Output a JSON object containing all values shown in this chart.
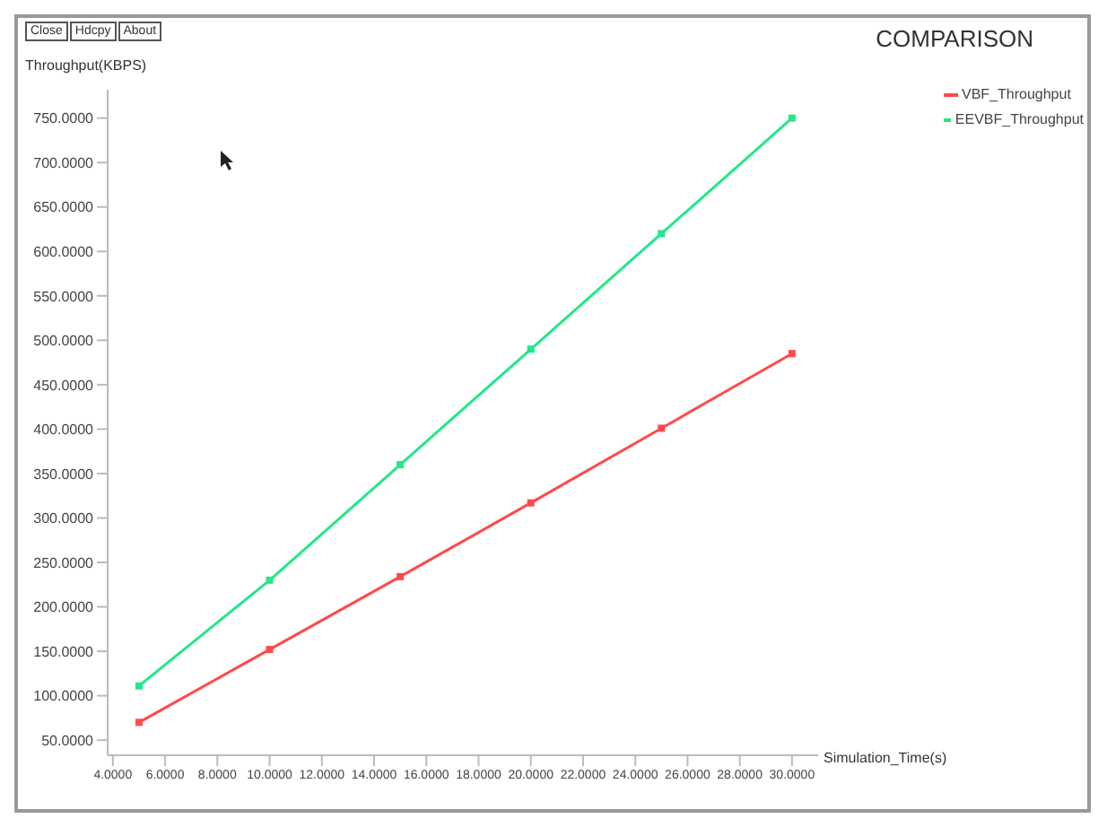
{
  "chart_data": {
    "type": "line",
    "title": "COMPARISON",
    "xlabel": "Simulation_Time(s)",
    "ylabel": "Throughput(KBPS)",
    "annotations": [
      "Close",
      "Hdcpy",
      "About"
    ],
    "x": [
      5,
      10,
      15,
      20,
      25,
      30
    ],
    "series": [
      {
        "name": "VBF_Throughput",
        "color": "#ff4a4a",
        "values": [
          70,
          152,
          234,
          317,
          401,
          485
        ]
      },
      {
        "name": "EEVBF_Throughput",
        "color": "#22e888",
        "values": [
          111,
          230,
          360,
          490,
          620,
          750
        ]
      }
    ],
    "xlim": [
      3.8,
      31
    ],
    "xticks": [
      {
        "value": 4,
        "label": "4.0000"
      },
      {
        "value": 6,
        "label": "6.0000"
      },
      {
        "value": 8,
        "label": "8.0000"
      },
      {
        "value": 10,
        "label": "10.0000"
      },
      {
        "value": 12,
        "label": "12.0000"
      },
      {
        "value": 14,
        "label": "14.0000"
      },
      {
        "value": 16,
        "label": "16.0000"
      },
      {
        "value": 18,
        "label": "18.0000"
      },
      {
        "value": 20,
        "label": "20.0000"
      },
      {
        "value": 22,
        "label": "22.0000"
      },
      {
        "value": 24,
        "label": "24.0000"
      },
      {
        "value": 26,
        "label": "26.0000"
      },
      {
        "value": 28,
        "label": "28.0000"
      },
      {
        "value": 30,
        "label": "30.0000"
      }
    ],
    "ylim": [
      33,
      782
    ],
    "yticks": [
      {
        "value": 50,
        "label": "50.0000"
      },
      {
        "value": 100,
        "label": "100.0000"
      },
      {
        "value": 150,
        "label": "150.0000"
      },
      {
        "value": 200,
        "label": "200.0000"
      },
      {
        "value": 250,
        "label": "250.0000"
      },
      {
        "value": 300,
        "label": "300.0000"
      },
      {
        "value": 350,
        "label": "350.0000"
      },
      {
        "value": 400,
        "label": "400.0000"
      },
      {
        "value": 450,
        "label": "450.0000"
      },
      {
        "value": 500,
        "label": "500.0000"
      },
      {
        "value": 550,
        "label": "550.0000"
      },
      {
        "value": 600,
        "label": "600.0000"
      },
      {
        "value": 650,
        "label": "650.0000"
      },
      {
        "value": 700,
        "label": "700.0000"
      },
      {
        "value": 750,
        "label": "750.0000"
      }
    ],
    "grid": false,
    "legend": "top right",
    "marker": "square",
    "line_style": "solid"
  }
}
